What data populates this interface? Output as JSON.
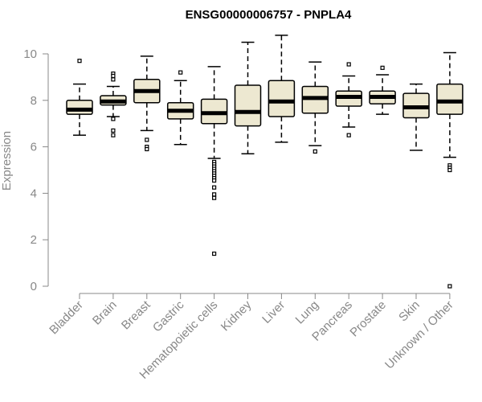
{
  "chart_data": {
    "type": "boxplot",
    "title": "ENSG00000006757 - PNPLA4",
    "xlabel": "",
    "ylabel": "Expression",
    "ylim": [
      0,
      10.9
    ],
    "yticks": [
      0,
      2,
      4,
      6,
      8,
      10
    ],
    "grid": false,
    "legend": "none",
    "colors": {
      "box_fill": "#ede8d1",
      "box_stroke": "#000000",
      "axis": "#888888"
    },
    "categories": [
      "Bladder",
      "Brain",
      "Breast",
      "Gastric",
      "Hematopoietic cells",
      "Kidney",
      "Liver",
      "Lung",
      "Pancreas",
      "Prostate",
      "Skin",
      "Unknown / Other"
    ],
    "boxes": [
      {
        "category": "Bladder",
        "whisker_low": 6.5,
        "q1": 7.4,
        "median": 7.6,
        "q3": 8.0,
        "whisker_high": 8.7,
        "outliers": [
          9.7
        ]
      },
      {
        "category": "Brain",
        "whisker_low": 7.3,
        "q1": 7.8,
        "median": 7.95,
        "q3": 8.2,
        "whisker_high": 8.6,
        "outliers": [
          9.15,
          9.05,
          8.9,
          7.2,
          6.7,
          6.5
        ]
      },
      {
        "category": "Breast",
        "whisker_low": 6.7,
        "q1": 7.9,
        "median": 8.4,
        "q3": 8.9,
        "whisker_high": 9.9,
        "outliers": [
          6.3,
          6.0,
          5.9
        ]
      },
      {
        "category": "Gastric",
        "whisker_low": 6.1,
        "q1": 7.2,
        "median": 7.55,
        "q3": 7.9,
        "whisker_high": 8.85,
        "outliers": [
          9.2
        ]
      },
      {
        "category": "Hematopoietic cells",
        "whisker_low": 5.5,
        "q1": 7.0,
        "median": 7.45,
        "q3": 8.05,
        "whisker_high": 9.45,
        "outliers": [
          5.35,
          5.25,
          5.15,
          5.05,
          4.95,
          4.85,
          4.75,
          4.65,
          4.55,
          4.25,
          3.95,
          3.8,
          1.4
        ]
      },
      {
        "category": "Kidney",
        "whisker_low": 5.7,
        "q1": 6.9,
        "median": 7.5,
        "q3": 8.65,
        "whisker_high": 10.5,
        "outliers": []
      },
      {
        "category": "Liver",
        "whisker_low": 6.2,
        "q1": 7.3,
        "median": 7.95,
        "q3": 8.85,
        "whisker_high": 10.8,
        "outliers": []
      },
      {
        "category": "Lung",
        "whisker_low": 6.05,
        "q1": 7.45,
        "median": 8.1,
        "q3": 8.6,
        "whisker_high": 9.65,
        "outliers": [
          5.8
        ]
      },
      {
        "category": "Pancreas",
        "whisker_low": 6.85,
        "q1": 7.75,
        "median": 8.15,
        "q3": 8.4,
        "whisker_high": 9.05,
        "outliers": [
          9.55,
          6.5
        ]
      },
      {
        "category": "Prostate",
        "whisker_low": 7.4,
        "q1": 7.85,
        "median": 8.15,
        "q3": 8.4,
        "whisker_high": 9.1,
        "outliers": [
          9.4
        ]
      },
      {
        "category": "Skin",
        "whisker_low": 5.85,
        "q1": 7.25,
        "median": 7.7,
        "q3": 8.3,
        "whisker_high": 8.7,
        "outliers": []
      },
      {
        "category": "Unknown / Other",
        "whisker_low": 5.55,
        "q1": 7.4,
        "median": 7.95,
        "q3": 8.7,
        "whisker_high": 10.05,
        "outliers": [
          5.2,
          5.1,
          5.0,
          0.0
        ]
      }
    ]
  }
}
